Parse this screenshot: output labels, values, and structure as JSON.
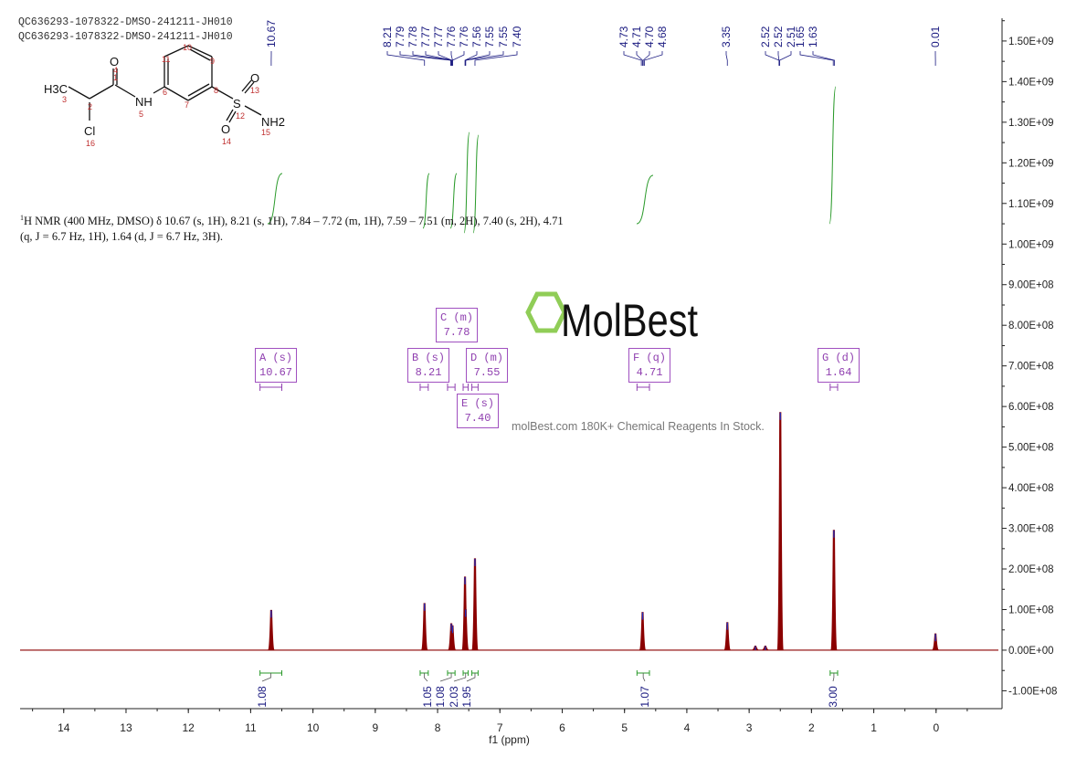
{
  "header": {
    "line1": "QC636293-1078322-DMSO-241211-JH010",
    "line2": "QC636293-1078322-DMSO-241211-JH010"
  },
  "structure": {
    "atoms": [
      "H3C",
      "O",
      "NH",
      "Cl",
      "O",
      "S",
      "NH2",
      "O"
    ],
    "atom_numbers": [
      "1",
      "2",
      "3",
      "4",
      "5",
      "6",
      "7",
      "8",
      "9",
      "10",
      "11",
      "12",
      "13",
      "14",
      "15",
      "16"
    ]
  },
  "nmr_description": {
    "sup": "1",
    "text": "H NMR (400 MHz, DMSO) δ 10.67 (s, 1H), 8.21 (s, 1H), 7.84 – 7.72 (m, 1H), 7.59 – 7.51 (m, 2H), 7.40 (s, 2H), 4.71 (q, J = 6.7 Hz, 1H), 1.64 (d, J = 6.7 Hz, 3H)."
  },
  "watermark": {
    "logo": "MolBest",
    "tagline": "molBest.com 180K+ Chemical Reagents In Stock."
  },
  "colors": {
    "spectrum": "#8b0000",
    "peak_tip": "#2030c0",
    "peak_labels": "#1a1a80",
    "integral": "#2a9a2a",
    "multiplet_box": "#9040b0"
  },
  "chart_data": {
    "type": "line",
    "xlabel": "f1 (ppm)",
    "ylabel": "",
    "xlim": [
      14.7,
      -1.0
    ],
    "ylim": [
      -144000000,
      1556000000
    ],
    "x_reversed": true,
    "x_ticks": [
      "14",
      "13",
      "12",
      "11",
      "10",
      "9",
      "8",
      "7",
      "6",
      "5",
      "4",
      "3",
      "2",
      "1",
      "0"
    ],
    "y_ticks": [
      "1.50E+09",
      "1.40E+09",
      "1.30E+09",
      "1.20E+09",
      "1.10E+09",
      "1.00E+09",
      "9.00E+08",
      "8.00E+08",
      "7.00E+08",
      "6.00E+08",
      "5.00E+08",
      "4.00E+08",
      "3.00E+08",
      "2.00E+08",
      "1.00E+08",
      "0.00E+00",
      "-1.00E+08"
    ],
    "y_axis_side": "right",
    "grid": false,
    "peaks": [
      {
        "ppm": 10.67,
        "height": 98000000
      },
      {
        "ppm": 8.21,
        "height": 115000000
      },
      {
        "ppm": 7.78,
        "height": 65000000
      },
      {
        "ppm": 7.76,
        "height": 60000000
      },
      {
        "ppm": 7.56,
        "height": 180000000
      },
      {
        "ppm": 7.55,
        "height": 100000000
      },
      {
        "ppm": 7.4,
        "height": 225000000
      },
      {
        "ppm": 4.71,
        "height": 93000000
      },
      {
        "ppm": 3.35,
        "height": 68000000
      },
      {
        "ppm": 2.9,
        "height": 10000000
      },
      {
        "ppm": 2.74,
        "height": 10000000
      },
      {
        "ppm": 2.5,
        "height": 585000000
      },
      {
        "ppm": 1.64,
        "height": 295000000
      },
      {
        "ppm": 0.01,
        "height": 40000000
      }
    ],
    "peak_labels": [
      {
        "group": [
          "10.67"
        ]
      },
      {
        "group": [
          "8.21",
          "7.79",
          "7.78",
          "7.77",
          "7.77",
          "7.76",
          "7.76",
          "7.56",
          "7.55",
          "7.55",
          "7.40"
        ]
      },
      {
        "group": [
          "4.73",
          "4.71",
          "4.70",
          "4.68"
        ]
      },
      {
        "group": [
          "3.35"
        ]
      },
      {
        "group": [
          "2.52",
          "2.52",
          "2.51"
        ]
      },
      {
        "group": [
          "1.65",
          "1.63"
        ]
      },
      {
        "group": [
          "0.01"
        ]
      }
    ],
    "multiplets": [
      {
        "label": "A (s)",
        "shift": "10.67"
      },
      {
        "label": "B (s)",
        "shift": "8.21"
      },
      {
        "label": "C (m)",
        "shift": "7.78"
      },
      {
        "label": "D (m)",
        "shift": "7.55"
      },
      {
        "label": "E (s)",
        "shift": "7.40"
      },
      {
        "label": "F (q)",
        "shift": "4.71"
      },
      {
        "label": "G (d)",
        "shift": "1.64"
      }
    ],
    "integrals": [
      {
        "from": 10.85,
        "to": 10.5,
        "value": "1.08"
      },
      {
        "from": 8.28,
        "to": 8.15,
        "value": "1.05"
      },
      {
        "from": 7.84,
        "to": 7.72,
        "value": "1.08"
      },
      {
        "from": 7.59,
        "to": 7.51,
        "value": "2.03"
      },
      {
        "from": 7.45,
        "to": 7.35,
        "value": "1.95"
      },
      {
        "from": 4.8,
        "to": 4.6,
        "value": "1.07"
      },
      {
        "from": 1.7,
        "to": 1.58,
        "value": "3.00"
      }
    ]
  }
}
